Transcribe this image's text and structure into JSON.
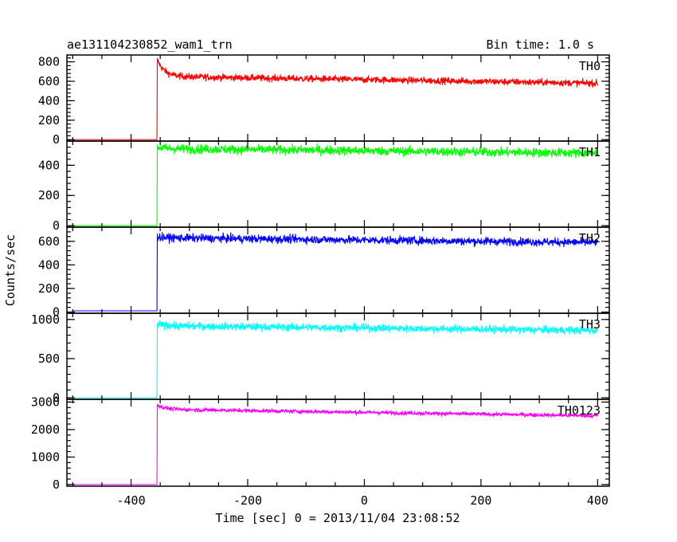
{
  "chart_data": {
    "type": "line",
    "title": "ae131104230852_wam1_trn",
    "bin_time_label": "Bin time: 1.0 s",
    "xlabel": "Time [sec] 0 = 2013/11/04 23:08:52",
    "ylabel": "Counts/sec",
    "xlim": [
      -510,
      420
    ],
    "x_ticks": [
      -400,
      -200,
      0,
      200,
      400
    ],
    "grid": false,
    "panels": [
      {
        "name": "TH0",
        "color": "#ff0000",
        "ylim": [
          -15,
          870
        ],
        "y_ticks": [
          0,
          200,
          400,
          600,
          800
        ],
        "baseline": 0,
        "onset_x": -355,
        "onset_peak": 820,
        "level_start": 650,
        "level_end": 580,
        "noise": 25
      },
      {
        "name": "TH1",
        "color": "#00ff00",
        "ylim": [
          -10,
          560
        ],
        "y_ticks": [
          0,
          200,
          400
        ],
        "baseline": 0,
        "onset_x": -355,
        "onset_peak": 520,
        "level_start": 510,
        "level_end": 480,
        "noise": 22
      },
      {
        "name": "TH2",
        "color": "#0000ff",
        "ylim": [
          -10,
          720
        ],
        "y_ticks": [
          0,
          200,
          400,
          600
        ],
        "baseline": 10,
        "onset_x": -355,
        "onset_peak": 640,
        "level_start": 630,
        "level_end": 590,
        "noise": 25
      },
      {
        "name": "TH3",
        "color": "#00ffff",
        "ylim": [
          -20,
          1080
        ],
        "y_ticks": [
          0,
          500,
          1000
        ],
        "baseline": 0,
        "onset_x": -355,
        "onset_peak": 940,
        "level_start": 920,
        "level_end": 860,
        "noise": 35
      },
      {
        "name": "TH0123",
        "color": "#ff00ff",
        "ylim": [
          -60,
          3100
        ],
        "y_ticks": [
          0,
          1000,
          2000,
          3000
        ],
        "baseline": 0,
        "onset_x": -355,
        "onset_peak": 2900,
        "level_start": 2740,
        "level_end": 2500,
        "noise": 50
      }
    ]
  }
}
